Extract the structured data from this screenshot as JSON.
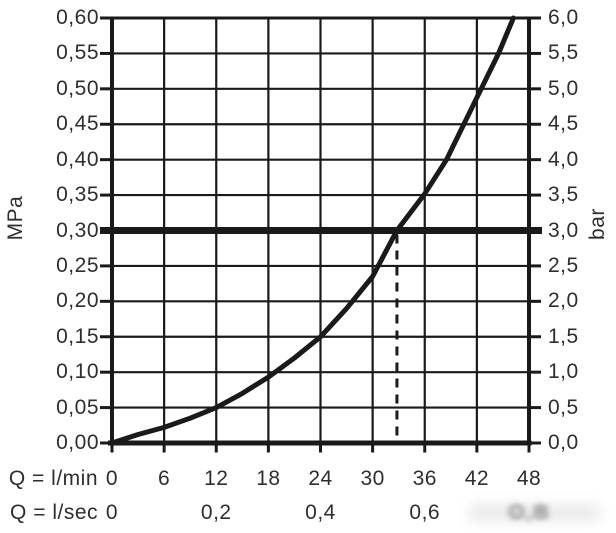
{
  "chart_data": {
    "type": "line",
    "title": "",
    "grid": true,
    "colors": {
      "line": "#1a1a1a",
      "text": "#2e2e2e",
      "background": "#ffffff"
    },
    "y_left_axis": {
      "label": "MPa",
      "range": [
        0,
        0.6
      ],
      "grid_step": 0.05,
      "tick_labels": [
        "0,60",
        "0,55",
        "0,50",
        "0,45",
        "0,40",
        "0,35",
        "0,30",
        "0,25",
        "0,20",
        "0,15",
        "0,10",
        "0,05",
        "0,00"
      ]
    },
    "y_right_axis": {
      "label": "bar",
      "range": [
        0,
        6
      ],
      "tick_labels": [
        "6,0",
        "5,5",
        "5,0",
        "4,5",
        "4,0",
        "3,5",
        "3,0",
        "2,5",
        "2,0",
        "1,5",
        "1,0",
        "0,5",
        "0,0"
      ]
    },
    "x_axis": {
      "row1_label": "Q = l/min",
      "row2_label": "Q = l/sec",
      "range_lmin": [
        0,
        48
      ],
      "grid_step_lmin": 6,
      "ticks_lmin": [
        {
          "value": 0,
          "label": "0"
        },
        {
          "value": 6,
          "label": "6"
        },
        {
          "value": 12,
          "label": "12"
        },
        {
          "value": 18,
          "label": "18"
        },
        {
          "value": 24,
          "label": "24"
        },
        {
          "value": 30,
          "label": "30"
        },
        {
          "value": 36,
          "label": "36"
        },
        {
          "value": 42,
          "label": "42"
        },
        {
          "value": 48,
          "label": "48"
        }
      ],
      "ticks_lsec": [
        {
          "at_lmin": 0,
          "label": "0",
          "blurred": false
        },
        {
          "at_lmin": 12,
          "label": "0,2",
          "blurred": false
        },
        {
          "at_lmin": 24,
          "label": "0,4",
          "blurred": false
        },
        {
          "at_lmin": 36,
          "label": "0,6",
          "blurred": false
        },
        {
          "at_lmin": 48,
          "label": "0,8",
          "blurred": true
        }
      ]
    },
    "series": [
      {
        "name": "flow-pressure-curve",
        "points_lmin_mpa": [
          [
            0,
            0.0
          ],
          [
            3,
            0.012
          ],
          [
            6,
            0.022
          ],
          [
            9,
            0.035
          ],
          [
            12,
            0.05
          ],
          [
            15,
            0.07
          ],
          [
            18,
            0.093
          ],
          [
            21,
            0.12
          ],
          [
            24,
            0.15
          ],
          [
            27,
            0.19
          ],
          [
            30,
            0.235
          ],
          [
            32.8,
            0.3
          ],
          [
            36,
            0.352
          ],
          [
            38.5,
            0.4
          ],
          [
            40.5,
            0.45
          ],
          [
            42.5,
            0.5
          ],
          [
            44.5,
            0.55
          ],
          [
            46.2,
            0.6
          ]
        ]
      }
    ],
    "reference_line_mpa": 0.3,
    "marker_dashed_line": {
      "x_lmin": 32.8,
      "from_mpa": 0.3,
      "to_mpa": 0
    }
  }
}
